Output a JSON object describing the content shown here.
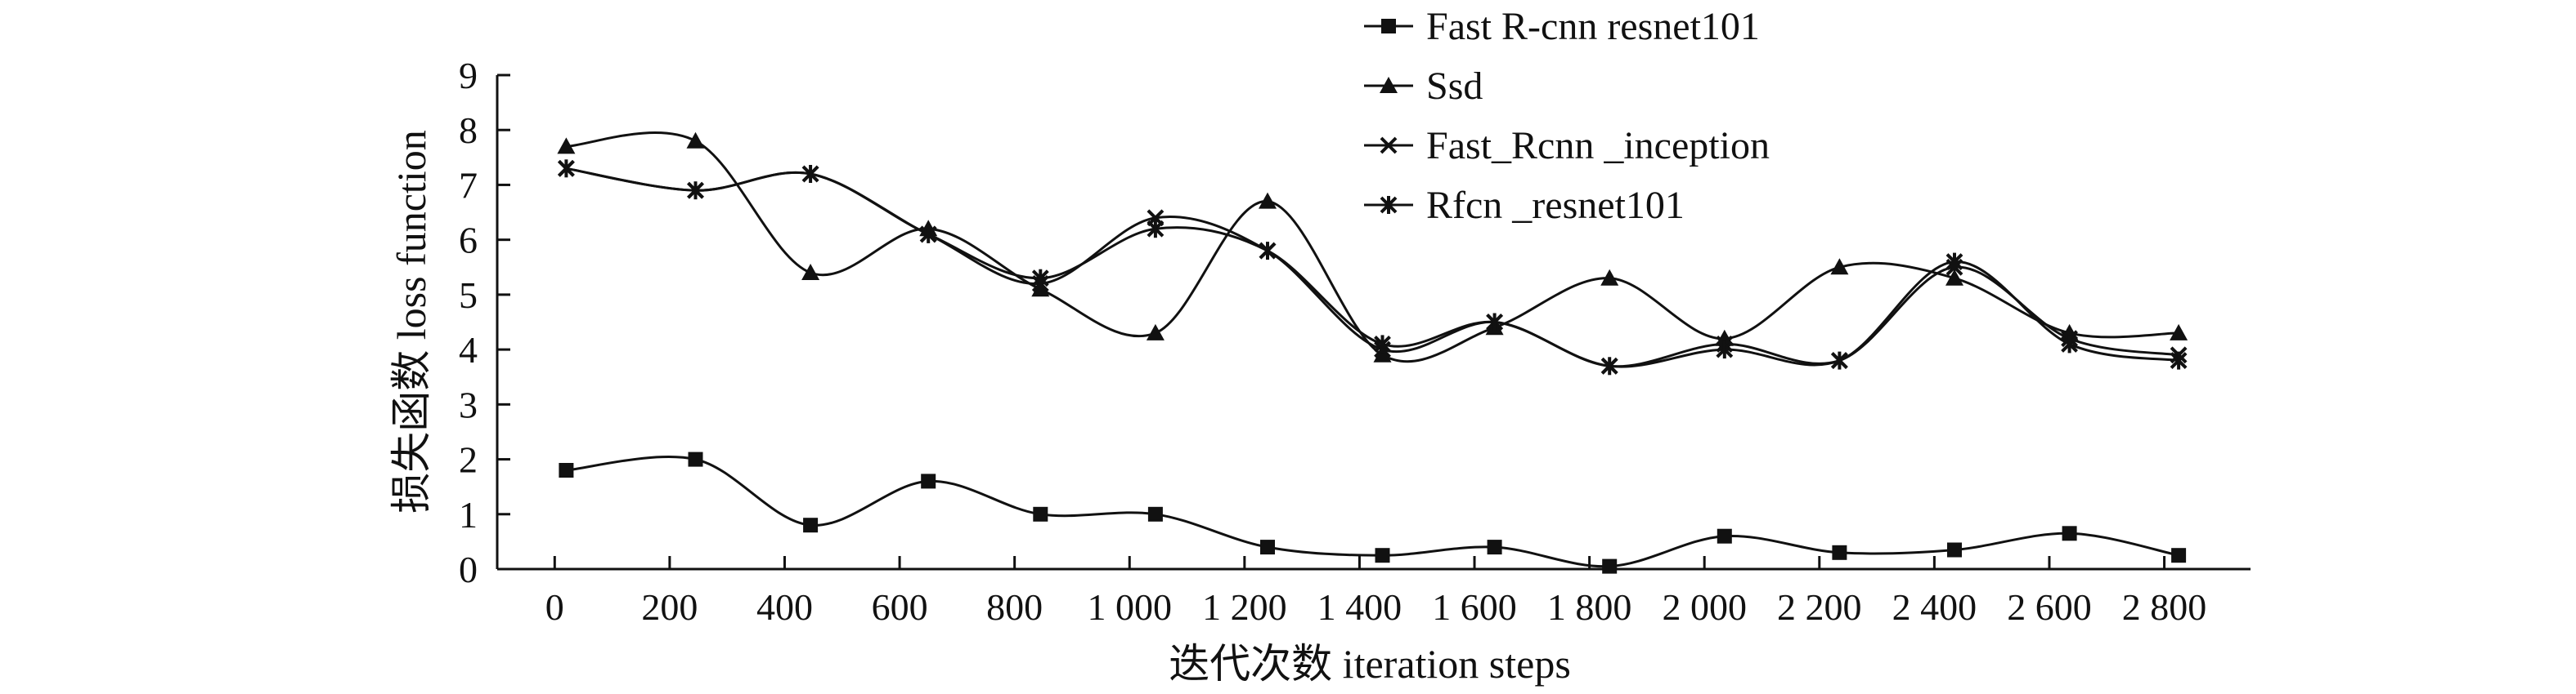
{
  "chart_data": {
    "type": "line",
    "title": "",
    "xlabel": "迭代次数 iteration steps",
    "ylabel": "损失函数 loss function",
    "xlim": [
      -100,
      2950
    ],
    "ylim": [
      0,
      9
    ],
    "x_ticks": [
      0,
      200,
      400,
      600,
      800,
      1000,
      1200,
      1400,
      1600,
      1800,
      2000,
      2200,
      2400,
      2600,
      2800
    ],
    "x_tick_labels": [
      "0",
      "200",
      "400",
      "600",
      "800",
      "1 000",
      "1 200",
      "1 400",
      "1 600",
      "1 800",
      "2 000",
      "2 200",
      "2 400",
      "2 600",
      "2 800"
    ],
    "y_ticks": [
      0,
      1,
      2,
      3,
      4,
      5,
      6,
      7,
      8,
      9
    ],
    "y_tick_labels": [
      "0",
      "1",
      "2",
      "3",
      "4",
      "5",
      "6",
      "7",
      "8",
      "9"
    ],
    "grid": false,
    "legend_position": "top-right",
    "x": [
      20,
      245,
      445,
      650,
      845,
      1045,
      1240,
      1440,
      1635,
      1835,
      2035,
      2235,
      2435,
      2635,
      2825
    ],
    "series": [
      {
        "name": "Fast R-cnn resnet101",
        "marker": "square",
        "values": [
          1.8,
          2.0,
          0.8,
          1.6,
          1.0,
          1.0,
          0.4,
          0.25,
          0.4,
          0.05,
          0.6,
          0.3,
          0.35,
          0.65,
          0.25
        ]
      },
      {
        "name": "Ssd",
        "marker": "triangle",
        "values": [
          7.7,
          7.8,
          5.4,
          6.2,
          5.1,
          4.3,
          6.7,
          3.9,
          4.4,
          5.3,
          4.2,
          5.5,
          5.3,
          4.3,
          4.3
        ]
      },
      {
        "name": "Fast_Rcnn _inception",
        "marker": "x",
        "values": [
          7.3,
          6.9,
          7.2,
          6.1,
          5.2,
          6.4,
          5.8,
          4.0,
          4.5,
          3.7,
          4.1,
          3.8,
          5.5,
          4.2,
          3.9
        ]
      },
      {
        "name": "Rfcn _resnet101",
        "marker": "star",
        "values": [
          7.3,
          6.9,
          7.2,
          6.1,
          5.3,
          6.2,
          5.8,
          4.1,
          4.5,
          3.7,
          4.0,
          3.8,
          5.6,
          4.1,
          3.8
        ]
      }
    ]
  }
}
